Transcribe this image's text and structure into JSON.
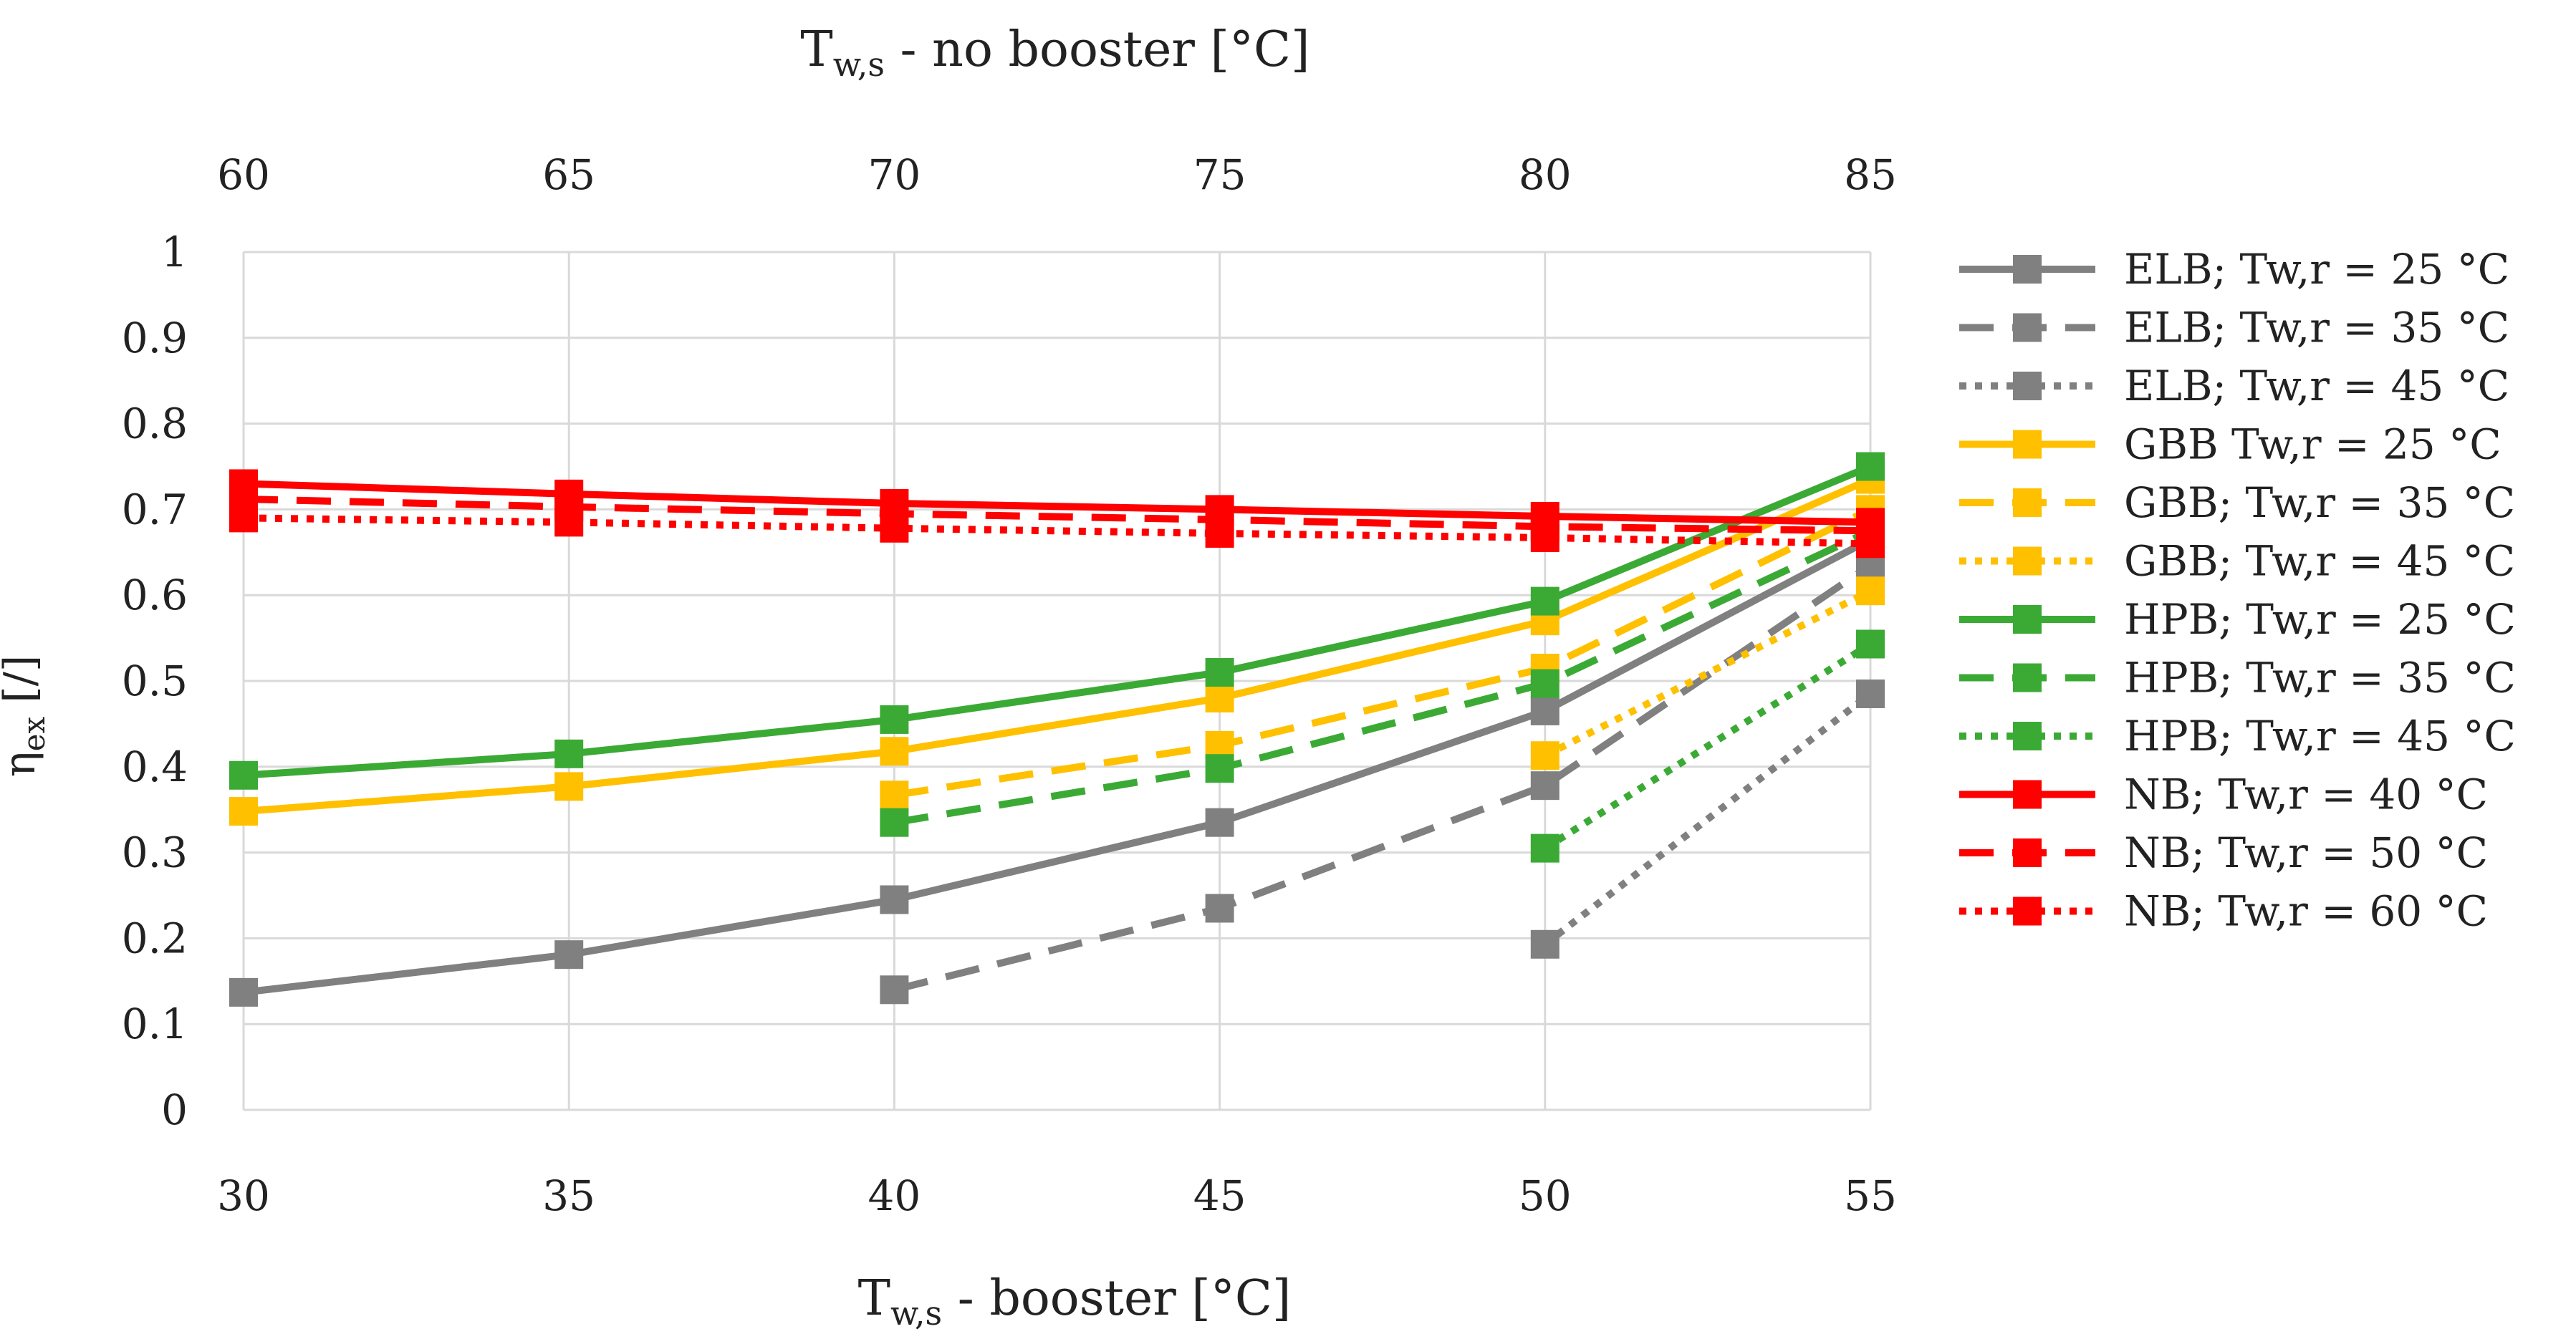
{
  "chart_data": {
    "type": "line",
    "ylabel_main": "η",
    "ylabel_sub": "ex",
    "ylabel_suffix": " [/]",
    "xlabel_main": "T",
    "xlabel_sub": "w,s",
    "xlabel_suffix": " - booster [°C]",
    "x2label_main": "T",
    "x2label_sub": "w,s",
    "x2label_suffix": " - no booster [°C]",
    "ylim": [
      0,
      1
    ],
    "y_ticks": [
      "0",
      "0.1",
      "0.2",
      "0.3",
      "0.4",
      "0.5",
      "0.6",
      "0.7",
      "0.8",
      "0.9",
      "1"
    ],
    "x_ticks": [
      "30",
      "35",
      "40",
      "45",
      "50",
      "55"
    ],
    "x2_ticks": [
      "60",
      "65",
      "70",
      "75",
      "80",
      "85"
    ],
    "grid": true,
    "legend_position": "right",
    "series": [
      {
        "name": "ELB; Tw,r = 25 °C",
        "color": "#808080",
        "dash": "solid",
        "x": [
          30,
          35,
          40,
          45,
          50,
          55
        ],
        "values": [
          0.137,
          0.181,
          0.245,
          0.335,
          0.465,
          0.665
        ]
      },
      {
        "name": "ELB; Tw,r = 35 °C",
        "color": "#808080",
        "dash": "dashed",
        "x": [
          40,
          45,
          50,
          55
        ],
        "values": [
          0.14,
          0.235,
          0.378,
          0.635
        ]
      },
      {
        "name": "ELB; Tw,r = 45 °C",
        "color": "#808080",
        "dash": "dotted",
        "x": [
          50,
          55
        ],
        "values": [
          0.193,
          0.485
        ]
      },
      {
        "name": "GBB Tw,r = 25 °C",
        "color": "#FFC000",
        "dash": "solid",
        "x": [
          30,
          35,
          40,
          45,
          50,
          55
        ],
        "values": [
          0.348,
          0.377,
          0.418,
          0.48,
          0.57,
          0.735
        ]
      },
      {
        "name": "GBB; Tw,r = 35 °C",
        "color": "#FFC000",
        "dash": "dashed",
        "x": [
          40,
          45,
          50,
          55
        ],
        "values": [
          0.367,
          0.425,
          0.515,
          0.7
        ]
      },
      {
        "name": "GBB; Tw,r = 45 °C",
        "color": "#FFC000",
        "dash": "dotted",
        "x": [
          50,
          55
        ],
        "values": [
          0.413,
          0.605
        ]
      },
      {
        "name": "HPB; Tw,r = 25 °C",
        "color": "#3BAA35",
        "dash": "solid",
        "x": [
          30,
          35,
          40,
          45,
          50,
          55
        ],
        "values": [
          0.39,
          0.415,
          0.455,
          0.51,
          0.593,
          0.75
        ]
      },
      {
        "name": "HPB; Tw,r = 35 °C",
        "color": "#3BAA35",
        "dash": "dashed",
        "x": [
          40,
          45,
          50,
          55
        ],
        "values": [
          0.335,
          0.398,
          0.497,
          0.675
        ]
      },
      {
        "name": "HPB; Tw,r = 45 °C",
        "color": "#3BAA35",
        "dash": "dotted",
        "x": [
          50,
          55
        ],
        "values": [
          0.305,
          0.543
        ]
      },
      {
        "name": "NB; Tw,r = 40 °C",
        "color": "#FF0000",
        "dash": "solid",
        "x": [
          30,
          35,
          40,
          45,
          50,
          55
        ],
        "values": [
          0.73,
          0.718,
          0.707,
          0.7,
          0.692,
          0.685
        ]
      },
      {
        "name": "NB; Tw,r = 50 °C",
        "color": "#FF0000",
        "dash": "dashed",
        "x": [
          30,
          35,
          40,
          45,
          50,
          55
        ],
        "values": [
          0.712,
          0.703,
          0.695,
          0.688,
          0.68,
          0.675
        ]
      },
      {
        "name": "NB; Tw,r = 60 °C",
        "color": "#FF0000",
        "dash": "dotted",
        "x": [
          30,
          35,
          40,
          45,
          50,
          55
        ],
        "values": [
          0.69,
          0.685,
          0.678,
          0.672,
          0.667,
          0.66
        ]
      }
    ]
  }
}
